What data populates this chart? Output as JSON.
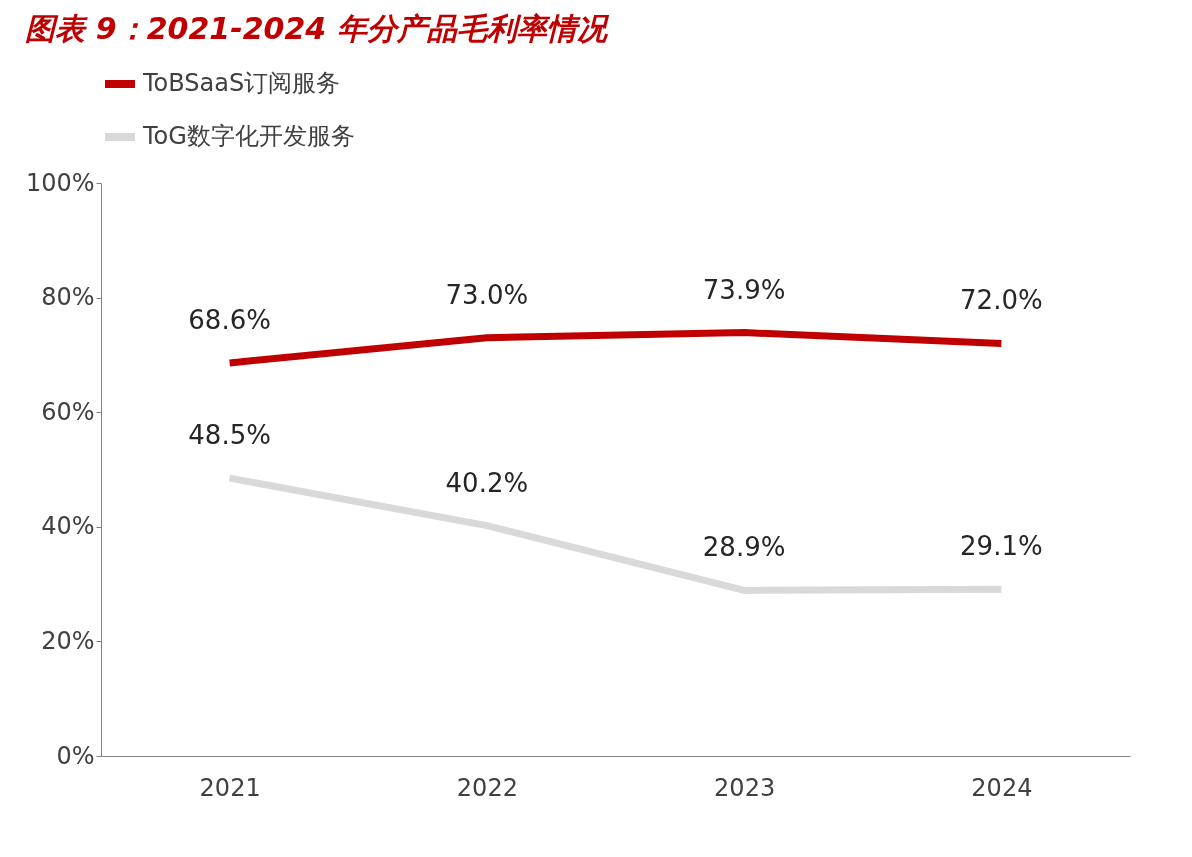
{
  "chart_data": {
    "type": "line",
    "title": "图表 9：2021-2024 年分产品毛利率情况",
    "categories": [
      "2021",
      "2022",
      "2023",
      "2024"
    ],
    "series": [
      {
        "name": "ToBSaaS订阅服务",
        "color": "#c00000",
        "values": [
          68.6,
          73.0,
          73.9,
          72.0
        ],
        "value_labels": [
          "68.6%",
          "73.0%",
          "73.9%",
          "72.0%"
        ]
      },
      {
        "name": "ToG数字化开发服务",
        "color": "#d9d9d9",
        "values": [
          48.5,
          40.2,
          28.9,
          29.1
        ],
        "value_labels": [
          "48.5%",
          "40.2%",
          "28.9%",
          "29.1%"
        ]
      }
    ],
    "ylim": [
      0,
      100
    ],
    "yticks": [
      {
        "value": 0,
        "label": "0%"
      },
      {
        "value": 20,
        "label": "20%"
      },
      {
        "value": 40,
        "label": "40%"
      },
      {
        "value": 60,
        "label": "60%"
      },
      {
        "value": 80,
        "label": "80%"
      },
      {
        "value": 100,
        "label": "100%"
      }
    ],
    "grid": false,
    "legend": "top",
    "marker": "none",
    "line_style": "solid"
  }
}
